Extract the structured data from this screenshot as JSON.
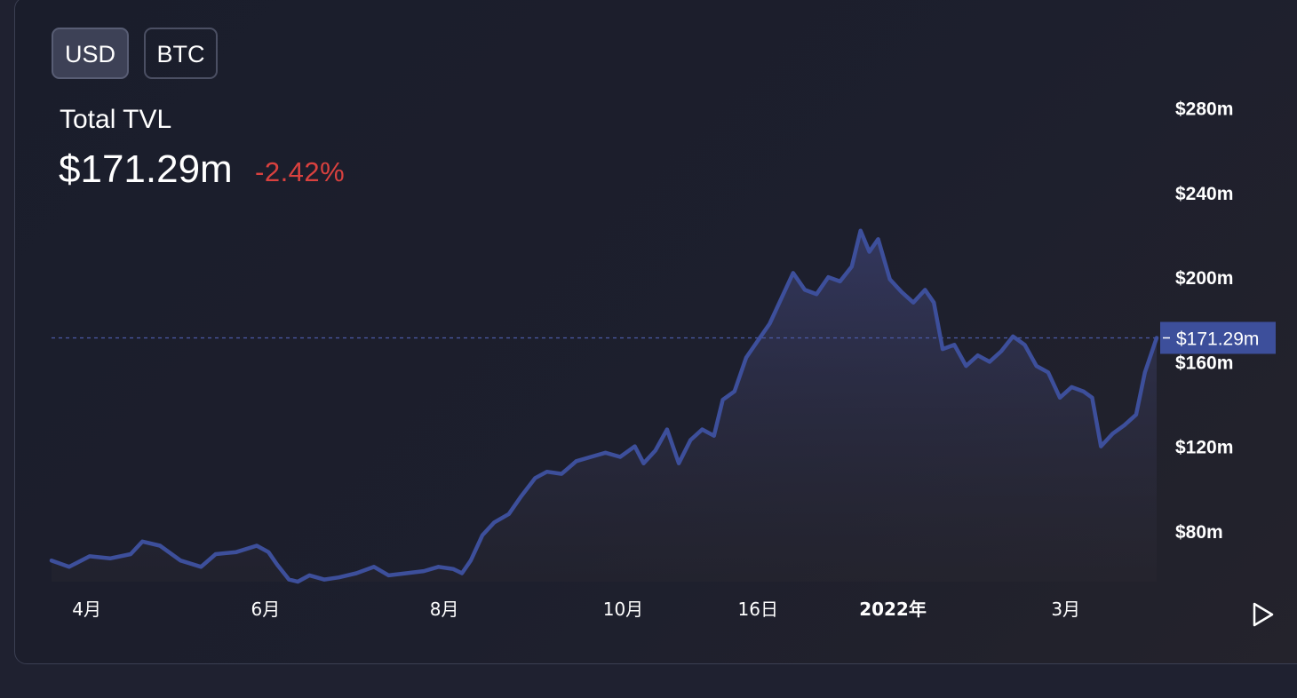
{
  "toggles": [
    {
      "label": "USD",
      "active": true
    },
    {
      "label": "BTC",
      "active": false
    }
  ],
  "header": {
    "title": "Total TVL",
    "value": "$171.29m",
    "change": "-2.42%"
  },
  "colors": {
    "line": "#3d4f9b",
    "change_negative": "#d9413f",
    "current_badge": "#3d4f9b"
  },
  "play_button": {
    "icon": "play-icon"
  },
  "chart_data": {
    "type": "area",
    "title": "Total TVL",
    "ylim": [
      56,
      300
    ],
    "y_ticks": [
      {
        "value": 80,
        "label": "$80m"
      },
      {
        "value": 120,
        "label": "$120m"
      },
      {
        "value": 160,
        "label": "$160m"
      },
      {
        "value": 200,
        "label": "$200m"
      },
      {
        "value": 240,
        "label": "$240m"
      },
      {
        "value": 280,
        "label": "$280m"
      }
    ],
    "x_range": [
      "2021-03-20",
      "2022-04-01"
    ],
    "x_ticks": [
      {
        "date": "2021-04-01",
        "label": "4月",
        "bold": false
      },
      {
        "date": "2021-06-01",
        "label": "6月",
        "bold": false
      },
      {
        "date": "2021-08-01",
        "label": "8月",
        "bold": false
      },
      {
        "date": "2021-10-01",
        "label": "10月",
        "bold": false
      },
      {
        "date": "2021-11-16",
        "label": "16日",
        "bold": false
      },
      {
        "date": "2022-01-01",
        "label": "2022年",
        "bold": true
      },
      {
        "date": "2022-03-01",
        "label": "3月",
        "bold": false
      }
    ],
    "current": {
      "value": 171.29,
      "label": "$171.29m"
    },
    "series": [
      {
        "points": [
          [
            "2021-03-20",
            66
          ],
          [
            "2021-03-26",
            63
          ],
          [
            "2021-04-02",
            68
          ],
          [
            "2021-04-09",
            67
          ],
          [
            "2021-04-16",
            69
          ],
          [
            "2021-04-20",
            75
          ],
          [
            "2021-04-26",
            73
          ],
          [
            "2021-05-03",
            66
          ],
          [
            "2021-05-10",
            63
          ],
          [
            "2021-05-15",
            69
          ],
          [
            "2021-05-22",
            70
          ],
          [
            "2021-05-29",
            73
          ],
          [
            "2021-06-02",
            70
          ],
          [
            "2021-06-05",
            64
          ],
          [
            "2021-06-09",
            57
          ],
          [
            "2021-06-12",
            56
          ],
          [
            "2021-06-16",
            59
          ],
          [
            "2021-06-21",
            57
          ],
          [
            "2021-06-26",
            58
          ],
          [
            "2021-07-02",
            60
          ],
          [
            "2021-07-08",
            63
          ],
          [
            "2021-07-13",
            59
          ],
          [
            "2021-07-19",
            60
          ],
          [
            "2021-07-25",
            61
          ],
          [
            "2021-07-30",
            63
          ],
          [
            "2021-08-04",
            62
          ],
          [
            "2021-08-07",
            60
          ],
          [
            "2021-08-10",
            66
          ],
          [
            "2021-08-14",
            78
          ],
          [
            "2021-08-18",
            84
          ],
          [
            "2021-08-23",
            88
          ],
          [
            "2021-08-27",
            96
          ],
          [
            "2021-09-01",
            105
          ],
          [
            "2021-09-05",
            108
          ],
          [
            "2021-09-10",
            107
          ],
          [
            "2021-09-15",
            113
          ],
          [
            "2021-09-20",
            115
          ],
          [
            "2021-09-25",
            117
          ],
          [
            "2021-09-30",
            115
          ],
          [
            "2021-10-05",
            120
          ],
          [
            "2021-10-08",
            112
          ],
          [
            "2021-10-12",
            118
          ],
          [
            "2021-10-16",
            128
          ],
          [
            "2021-10-20",
            112
          ],
          [
            "2021-10-24",
            123
          ],
          [
            "2021-10-28",
            128
          ],
          [
            "2021-11-01",
            125
          ],
          [
            "2021-11-04",
            142
          ],
          [
            "2021-11-08",
            146
          ],
          [
            "2021-11-12",
            162
          ],
          [
            "2021-11-16",
            170
          ],
          [
            "2021-11-20",
            178
          ],
          [
            "2021-11-24",
            190
          ],
          [
            "2021-11-28",
            202
          ],
          [
            "2021-12-02",
            194
          ],
          [
            "2021-12-06",
            192
          ],
          [
            "2021-12-10",
            200
          ],
          [
            "2021-12-14",
            198
          ],
          [
            "2021-12-18",
            205
          ],
          [
            "2021-12-21",
            222
          ],
          [
            "2021-12-24",
            212
          ],
          [
            "2021-12-27",
            218
          ],
          [
            "2021-12-31",
            199
          ],
          [
            "2022-01-04",
            193
          ],
          [
            "2022-01-08",
            188
          ],
          [
            "2022-01-12",
            194
          ],
          [
            "2022-01-15",
            188
          ],
          [
            "2022-01-18",
            166
          ],
          [
            "2022-01-22",
            168
          ],
          [
            "2022-01-26",
            158
          ],
          [
            "2022-01-30",
            163
          ],
          [
            "2022-02-03",
            160
          ],
          [
            "2022-02-07",
            165
          ],
          [
            "2022-02-11",
            172
          ],
          [
            "2022-02-15",
            168
          ],
          [
            "2022-02-19",
            158
          ],
          [
            "2022-02-23",
            155
          ],
          [
            "2022-02-27",
            143
          ],
          [
            "2022-03-03",
            148
          ],
          [
            "2022-03-07",
            146
          ],
          [
            "2022-03-10",
            143
          ],
          [
            "2022-03-13",
            120
          ],
          [
            "2022-03-17",
            126
          ],
          [
            "2022-03-21",
            130
          ],
          [
            "2022-03-25",
            135
          ],
          [
            "2022-03-28",
            155
          ],
          [
            "2022-04-01",
            171.29
          ]
        ]
      }
    ]
  }
}
